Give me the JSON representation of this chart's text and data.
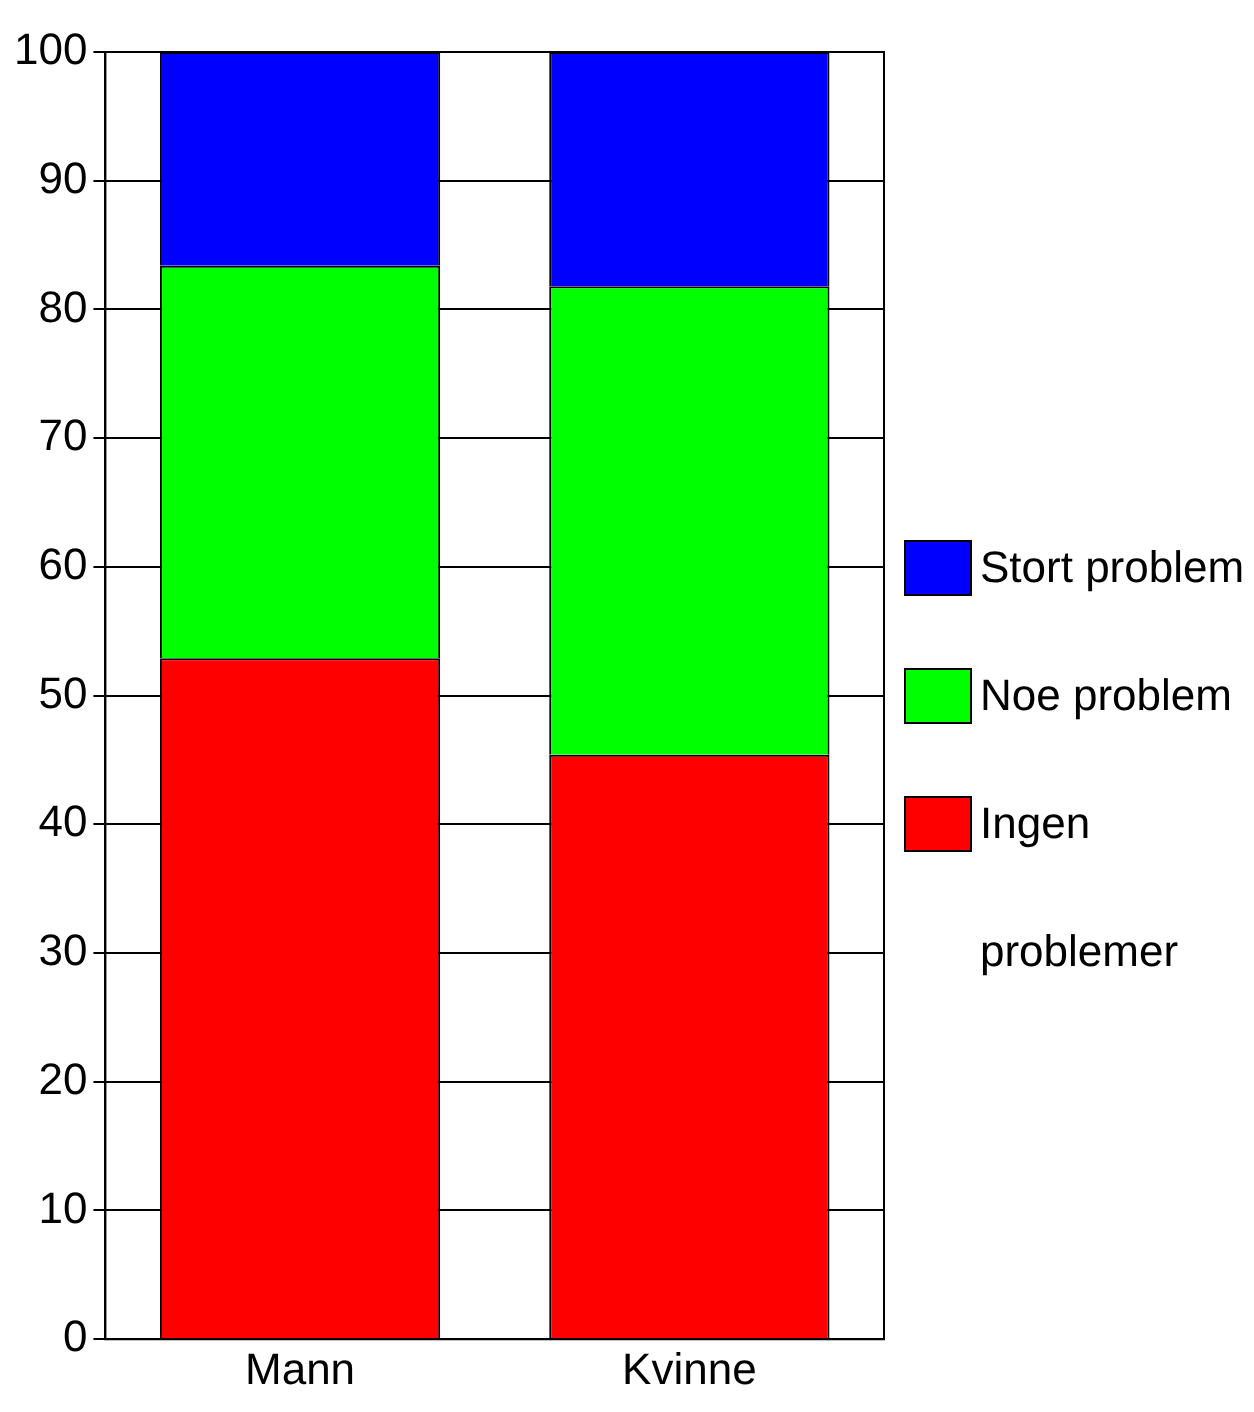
{
  "chart_data": {
    "type": "bar",
    "stacked": true,
    "categories": [
      "Mann",
      "Kvinne"
    ],
    "series": [
      {
        "name": "Ingen problemer",
        "color": "#ff0000",
        "values": [
          52.9,
          45.4
        ]
      },
      {
        "name": "Noe problem",
        "color": "#00ff00",
        "values": [
          30.5,
          36.4
        ]
      },
      {
        "name": "Stort problem",
        "color": "#0000ff",
        "values": [
          16.6,
          18.2
        ]
      }
    ],
    "ylim": [
      0,
      100
    ],
    "yticks": [
      0,
      10,
      20,
      30,
      40,
      50,
      60,
      70,
      80,
      90,
      100
    ],
    "grid": "y",
    "legend": "right"
  }
}
